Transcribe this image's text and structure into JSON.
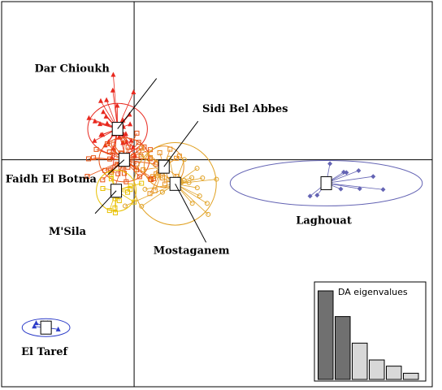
{
  "chart_data": {
    "type": "scatter",
    "title": "",
    "xlabel": "",
    "ylabel": "",
    "xlim": [
      -2.0,
      4.5
    ],
    "ylim": [
      -3.3,
      2.3
    ],
    "grid": false,
    "axes_through_origin": true,
    "groups": [
      {
        "name": "Dar Chioukh",
        "color": "#e8281e",
        "marker": "triangle",
        "centroid": [
          -0.25,
          0.45
        ],
        "ellipse_axes": [
          0.45,
          0.37
        ],
        "n_points": 36,
        "spread": [
          0.35,
          0.5
        ]
      },
      {
        "name": "Faidh El Botma",
        "color": "#e85010",
        "marker": "square",
        "centroid": [
          -0.15,
          0.0
        ],
        "ellipse_axes": [
          0.38,
          0.32
        ],
        "n_points": 40,
        "spread": [
          0.45,
          0.32
        ]
      },
      {
        "name": "M'Sila",
        "color": "#e8c000",
        "marker": "square",
        "centroid": [
          -0.27,
          -0.45
        ],
        "ellipse_axes": [
          0.3,
          0.3
        ],
        "n_points": 14,
        "spread": [
          0.3,
          0.32
        ]
      },
      {
        "name": "Sidi Bel Abbes",
        "color": "#e89020",
        "marker": "square",
        "centroid": [
          0.45,
          -0.1
        ],
        "ellipse_axes": [
          0.3,
          0.3
        ],
        "n_points": 18,
        "spread": [
          0.3,
          0.3
        ]
      },
      {
        "name": "Mostaganem",
        "color": "#e0a020",
        "marker": "circle",
        "centroid": [
          0.62,
          -0.35
        ],
        "ellipse_axes": [
          0.62,
          0.6
        ],
        "n_points": 22,
        "spread": [
          0.55,
          0.5
        ]
      },
      {
        "name": "Laghouat",
        "color": "#6464b4",
        "marker": "diamond",
        "centroid": [
          2.9,
          -0.34
        ],
        "ellipse_axes": [
          1.45,
          0.33
        ],
        "n_points": 10,
        "spread": [
          1.1,
          0.28
        ]
      },
      {
        "name": "El Taref",
        "color": "#2c3cc8",
        "marker": "triangle",
        "centroid": [
          -1.33,
          -2.44
        ],
        "ellipse_axes": [
          0.36,
          0.13
        ],
        "n_points": 6,
        "spread": [
          0.28,
          0.1
        ]
      }
    ],
    "inset": {
      "title": "DA eigenvalues",
      "values": [
        100,
        71,
        41,
        22,
        15,
        7
      ],
      "bar_colors": [
        "#707070",
        "#707070",
        "#d8d8d8",
        "#d8d8d8",
        "#d8d8d8",
        "#d8d8d8"
      ]
    }
  }
}
